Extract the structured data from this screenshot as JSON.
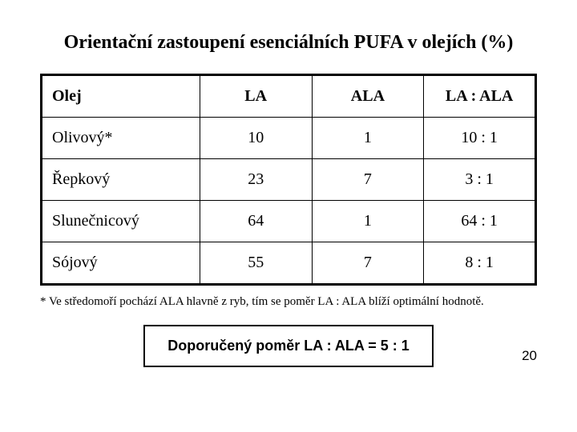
{
  "title": "Orientační zastoupení esenciálních PUFA v olejích (%)",
  "table": {
    "columns": [
      "Olej",
      "LA",
      "ALA",
      "LA : ALA"
    ],
    "rows": [
      [
        "Olivový*",
        "10",
        "1",
        "10 : 1"
      ],
      [
        "Řepkový",
        "23",
        "7",
        "3 : 1"
      ],
      [
        "Slunečnicový",
        "64",
        "1",
        "64 : 1"
      ],
      [
        "Sójový",
        "55",
        "7",
        "8 : 1"
      ]
    ],
    "border_color": "#000000",
    "outer_border_width": 3,
    "inner_border_width": 1,
    "cell_font_size": 20,
    "background_color": "#ffffff"
  },
  "footnote": "* Ve středomoří pochází ALA hlavně z ryb, tím se poměr LA : ALA blíží optimální hodnotě.",
  "recommendation": "Doporučený poměr LA : ALA = 5 : 1",
  "recommendation_box": {
    "border_color": "#000000",
    "border_width": 2,
    "font_size": 18,
    "font_weight": "bold"
  },
  "page_number": "20",
  "colors": {
    "text": "#000000",
    "background": "#ffffff"
  }
}
